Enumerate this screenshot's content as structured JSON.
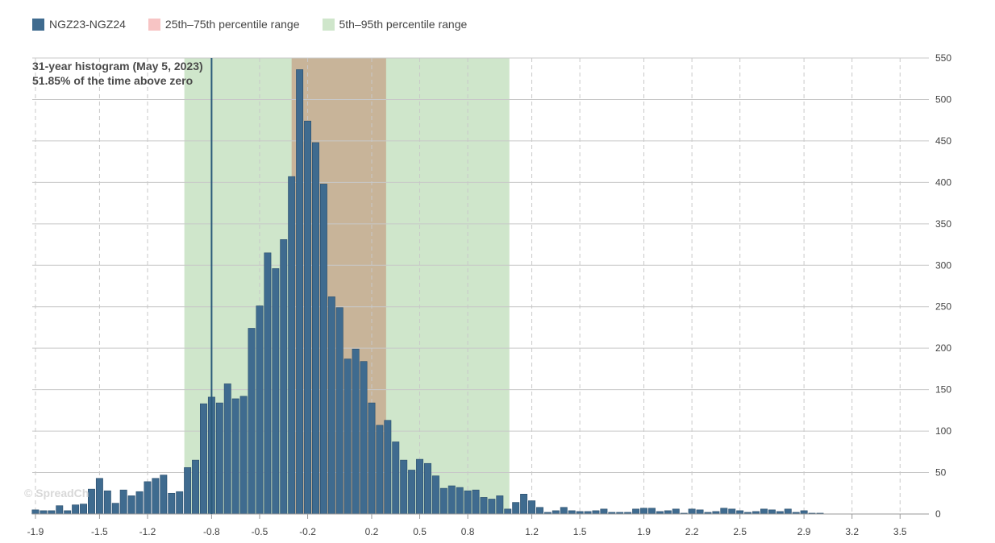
{
  "legend": {
    "series_label": "NGZ23-NGZ24",
    "p25_75_label": "25th–75th percentile range",
    "p5_95_label": "5th–95th percentile range"
  },
  "annotation": {
    "line1": "31-year histogram (May 5, 2023)",
    "line2": "51.85% of the time above zero"
  },
  "watermark": "© SpreadCh",
  "colors": {
    "bar": "#3f6b8f",
    "bar_stroke": "#2a4d6b",
    "p25_75": "#f7c4c4",
    "p25_75_overlap": "#c8b499",
    "p5_95": "#cfe6cb",
    "current_line": "#2a5a7a"
  },
  "chart_data": {
    "type": "bar",
    "title": "",
    "xlabel": "",
    "ylabel": "",
    "xlim": [
      -1.92,
      3.68
    ],
    "ylim": [
      0,
      550
    ],
    "x_tick_labels": [
      "-1.9",
      "-1.5",
      "-1.2",
      "-0.8",
      "-0.5",
      "-0.2",
      "0.2",
      "0.5",
      "0.8",
      "1.2",
      "1.5",
      "1.9",
      "2.2",
      "2.5",
      "2.9",
      "3.2",
      "3.5"
    ],
    "y_tick_labels": [
      "0",
      "50",
      "100",
      "150",
      "200",
      "250",
      "300",
      "350",
      "400",
      "450",
      "500",
      "550"
    ],
    "bin_start": -1.9,
    "bin_width": 0.05,
    "series": [
      {
        "name": "NGZ23-NGZ24",
        "values": [
          5,
          4,
          4,
          10,
          4,
          11,
          12,
          30,
          43,
          28,
          13,
          29,
          22,
          27,
          39,
          43,
          47,
          25,
          27,
          56,
          65,
          133,
          141,
          134,
          157,
          139,
          142,
          224,
          251,
          315,
          296,
          331,
          407,
          536,
          474,
          448,
          398,
          262,
          249,
          187,
          199,
          184,
          134,
          107,
          113,
          87,
          65,
          53,
          66,
          61,
          46,
          31,
          34,
          32,
          28,
          29,
          20,
          18,
          22,
          6,
          14,
          24,
          16,
          8,
          2,
          4,
          8,
          4,
          3,
          3,
          4,
          6,
          2,
          2,
          2,
          6,
          7,
          7,
          3,
          4,
          6,
          1,
          6,
          5,
          2,
          3,
          7,
          6,
          4,
          2,
          3,
          6,
          5,
          3,
          6,
          2,
          4,
          1,
          1
        ]
      }
    ],
    "percentile_bands": {
      "p5_95": [
        -0.97,
        1.06
      ],
      "p25_75": [
        -0.3,
        0.29
      ]
    },
    "current_value": -0.8,
    "annotations": [
      "31-year histogram (May 5, 2023)",
      "51.85% of the time above zero"
    ],
    "legend_position": "top-left",
    "grid": true
  }
}
